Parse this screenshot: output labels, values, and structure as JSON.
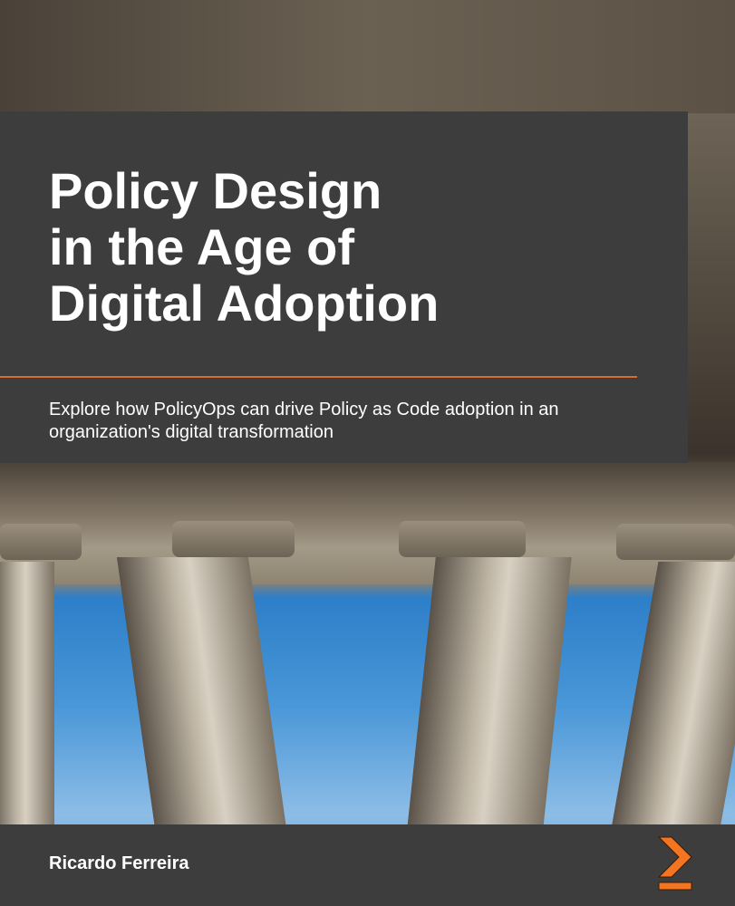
{
  "cover": {
    "title_lines": [
      "Policy Design",
      "in the Age of",
      "Digital Adoption"
    ],
    "subtitle": "Explore how PolicyOps can drive Policy as Code adoption in an organization's digital transformation",
    "author": "Ricardo Ferreira",
    "colors": {
      "panel": "#3d3d3d",
      "accent": "#f47521",
      "text": "#ffffff"
    },
    "logo_icon": "publisher-chevron-logo"
  }
}
